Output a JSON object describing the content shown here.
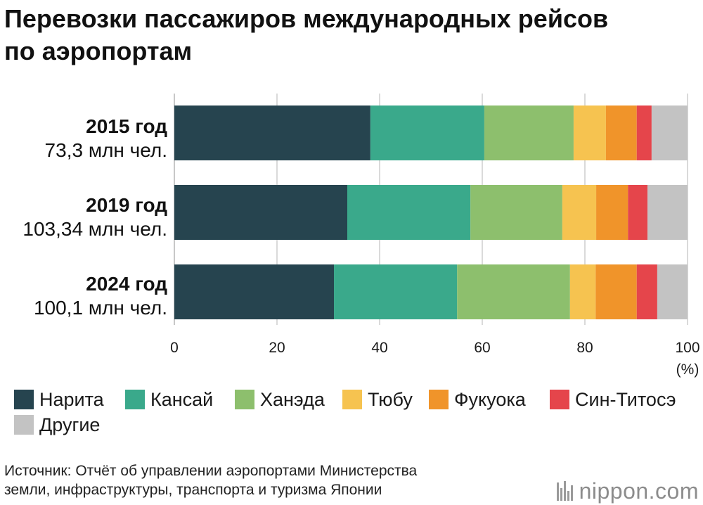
{
  "chart_data": {
    "type": "bar",
    "orientation": "horizontal",
    "stacked": true,
    "title": [
      "Перевозки пассажиров международных рейсов",
      "по аэропортам"
    ],
    "categories": [
      "2015 год",
      "2019 год",
      "2024 год"
    ],
    "category_totals": [
      "73,3 млн чел.",
      "103,34 млн чел.",
      "100,1 млн чел."
    ],
    "series": [
      {
        "name": "Нарита",
        "color": "#26444f",
        "values": [
          38.2,
          33.7,
          31.1
        ]
      },
      {
        "name": "Кансай",
        "color": "#3aa98b",
        "values": [
          22.2,
          24.0,
          24.0
        ]
      },
      {
        "name": "Ханэда",
        "color": "#8dbf6d",
        "values": [
          17.4,
          17.9,
          22.0
        ]
      },
      {
        "name": "Тюбу",
        "color": "#f6c350",
        "values": [
          6.3,
          6.6,
          5.0
        ]
      },
      {
        "name": "Фукуока",
        "color": "#f0942a",
        "values": [
          6.0,
          6.2,
          8.0
        ]
      },
      {
        "name": "Син-Титосэ",
        "color": "#e5454b",
        "values": [
          2.9,
          3.8,
          4.0
        ]
      },
      {
        "name": "Другие",
        "color": "#c3c3c3",
        "values": [
          7.0,
          7.8,
          5.9
        ]
      }
    ],
    "xlim": [
      0,
      100
    ],
    "xticks": [
      0,
      20,
      40,
      60,
      80,
      100
    ],
    "xlabel": "(%)",
    "grid": true,
    "gridline_color": "#b5b5b5",
    "legend": "bottom"
  },
  "source": [
    "Источник: Отчёт об управлении аэропортами Министерства",
    "земли, инфраструктуры, транспорта и туризма Японии"
  ],
  "logo": "nippon.com"
}
